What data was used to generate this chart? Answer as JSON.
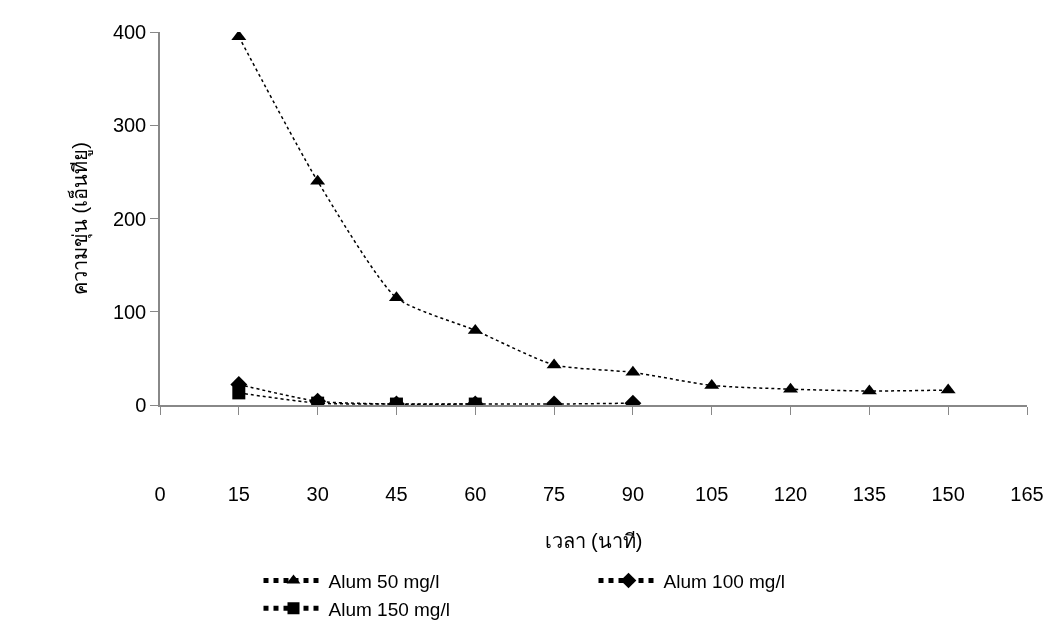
{
  "chart_data": {
    "type": "line",
    "xlabel": "เวลา (นาที)",
    "ylabel": "ความขุ่น (เอ็นทียู)",
    "xlim": [
      0,
      165
    ],
    "xticks": [
      0,
      15,
      30,
      45,
      60,
      75,
      90,
      105,
      120,
      135,
      150,
      165
    ],
    "ylim": [
      0,
      400
    ],
    "yticks": [
      0,
      100,
      200,
      300,
      400
    ],
    "grid": false,
    "legend": "bottom",
    "line_style": "dotted",
    "series": [
      {
        "name": "Alum 50 mg/l",
        "color": "#000000",
        "marker": "triangle",
        "x": [
          15,
          30,
          45,
          60,
          75,
          90,
          105,
          120,
          135,
          150
        ],
        "values": [
          395,
          240,
          115,
          80,
          43,
          35,
          21,
          17,
          15,
          16
        ]
      },
      {
        "name": "Alum 100 mg/l",
        "color": "#000000",
        "marker": "diamond",
        "x": [
          15,
          30,
          45,
          60,
          75,
          90
        ],
        "values": [
          22,
          4,
          1,
          1,
          1,
          2
        ]
      },
      {
        "name": "Alum 150 mg/l",
        "color": "#000000",
        "marker": "square",
        "x": [
          15,
          30,
          45,
          60
        ],
        "values": [
          13,
          2,
          1,
          1
        ]
      }
    ]
  }
}
